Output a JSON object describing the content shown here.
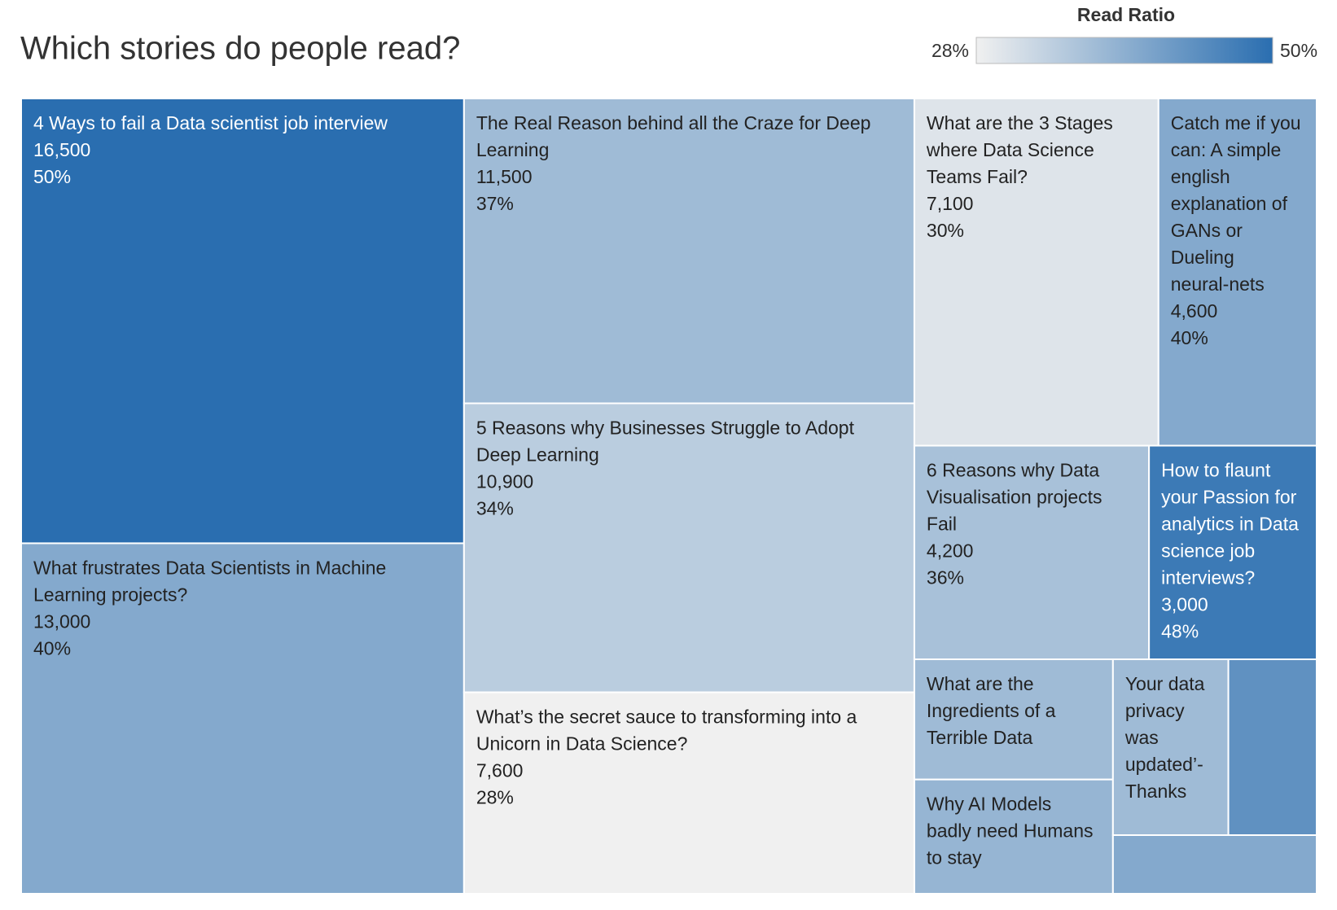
{
  "chart_data": {
    "type": "treemap",
    "title": "Which stories do people read?",
    "categories": [
      "4 Ways to fail a Data scientist job interview",
      "What frustrates Data Scientists in Machine Learning projects?",
      "The Real Reason behind all the Craze for Deep Learning",
      "5 Reasons why Businesses Struggle to Adopt Deep Learning",
      "What’s the secret sauce to transforming into a Unicorn in Data Science?",
      "What are the 3 Stages where Data Science Teams Fail?",
      "Catch me if you can: A simple english explanation of GANs or Dueling neural-nets",
      "6 Reasons why Data Visualisation projects Fail",
      "How to flaunt your Passion for analytics in Data science job interviews?",
      "What are the Ingredients of a Terrible Data",
      "Why AI Models badly need Humans to stay",
      "Your data privacy was updated’- Thanks",
      null,
      null
    ],
    "values": [
      16500,
      13000,
      11500,
      10900,
      7600,
      7100,
      4600,
      4200,
      3000,
      2000,
      1900,
      1700,
      1300,
      1000
    ],
    "value_labels": [
      "16,500",
      "13,000",
      "11,500",
      "10,900",
      "7,600",
      "7,100",
      "4,600",
      "4,200",
      "3,000",
      null,
      null,
      null,
      null,
      null
    ],
    "ratios": [
      50,
      40,
      37,
      34,
      28,
      30,
      40,
      36,
      48,
      37,
      38,
      37,
      44,
      40
    ],
    "ratio_labels": [
      "50%",
      "40%",
      "37%",
      "34%",
      "28%",
      "30%",
      "40%",
      "36%",
      "48%",
      null,
      null,
      null,
      null,
      null
    ],
    "legend": {
      "title": "Read Ratio",
      "range": [
        28,
        50
      ],
      "labels": [
        "28%",
        "50%"
      ],
      "colors": [
        "#f0f0f0",
        "#2a6eb0"
      ]
    }
  }
}
